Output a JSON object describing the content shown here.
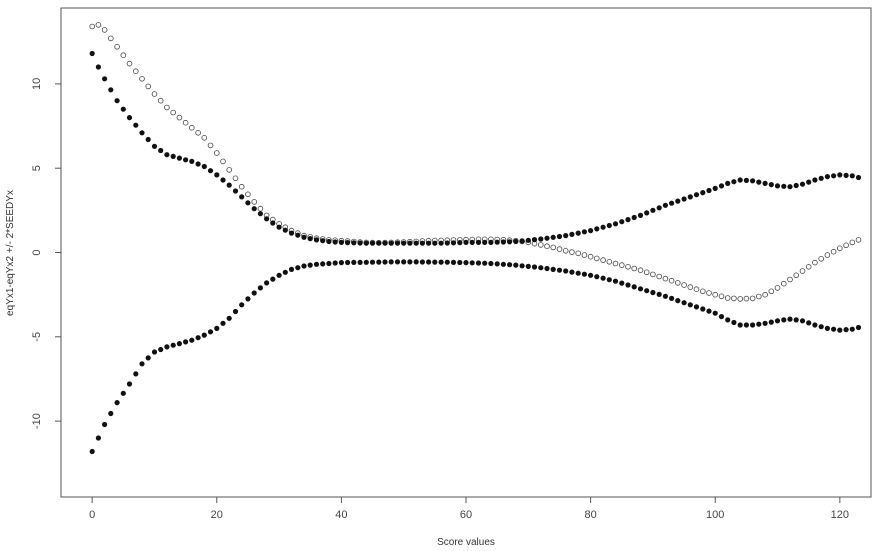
{
  "chart_data": {
    "type": "scatter",
    "title": "",
    "xlabel": "Score values",
    "ylabel": "eqYx1-eqYx2 +/- 2*SEEDYx",
    "xlim": [
      -5,
      125
    ],
    "ylim": [
      -14.5,
      14.5
    ],
    "xticks": [
      0,
      20,
      40,
      60,
      80,
      100,
      120
    ],
    "yticks": [
      -10,
      -5,
      0,
      5,
      10
    ],
    "grid": false,
    "legend": "none",
    "colors": {
      "filled": "#111111",
      "open_stroke": "#444444",
      "frame": "#555555"
    },
    "series": [
      {
        "marker": "open-circle",
        "knots": [
          [
            0,
            13.4
          ],
          [
            1,
            13.5
          ],
          [
            2,
            13.2
          ],
          [
            4,
            12.2
          ],
          [
            6,
            11.2
          ],
          [
            8,
            10.3
          ],
          [
            10,
            9.4
          ],
          [
            12,
            8.6
          ],
          [
            14,
            8.0
          ],
          [
            16,
            7.4
          ],
          [
            18,
            6.8
          ],
          [
            20,
            5.9
          ],
          [
            22,
            4.9
          ],
          [
            24,
            3.9
          ],
          [
            26,
            3.0
          ],
          [
            28,
            2.2
          ],
          [
            30,
            1.7
          ],
          [
            32,
            1.3
          ],
          [
            34,
            1.0
          ],
          [
            36,
            0.85
          ],
          [
            38,
            0.75
          ],
          [
            40,
            0.7
          ],
          [
            42,
            0.65
          ],
          [
            44,
            0.6
          ],
          [
            46,
            0.58
          ],
          [
            48,
            0.6
          ],
          [
            50,
            0.62
          ],
          [
            52,
            0.66
          ],
          [
            54,
            0.7
          ],
          [
            56,
            0.72
          ],
          [
            58,
            0.74
          ],
          [
            60,
            0.76
          ],
          [
            62,
            0.78
          ],
          [
            64,
            0.78
          ],
          [
            66,
            0.76
          ],
          [
            68,
            0.7
          ],
          [
            70,
            0.6
          ],
          [
            72,
            0.45
          ],
          [
            74,
            0.3
          ],
          [
            76,
            0.1
          ],
          [
            78,
            -0.05
          ],
          [
            80,
            -0.25
          ],
          [
            82,
            -0.45
          ],
          [
            84,
            -0.65
          ],
          [
            86,
            -0.85
          ],
          [
            88,
            -1.05
          ],
          [
            90,
            -1.3
          ],
          [
            92,
            -1.55
          ],
          [
            94,
            -1.8
          ],
          [
            96,
            -2.05
          ],
          [
            98,
            -2.3
          ],
          [
            100,
            -2.5
          ],
          [
            102,
            -2.7
          ],
          [
            104,
            -2.75
          ],
          [
            106,
            -2.72
          ],
          [
            108,
            -2.5
          ],
          [
            110,
            -2.1
          ],
          [
            112,
            -1.6
          ],
          [
            114,
            -1.1
          ],
          [
            116,
            -0.6
          ],
          [
            118,
            -0.15
          ],
          [
            120,
            0.25
          ],
          [
            122,
            0.6
          ],
          [
            123,
            0.75
          ]
        ]
      },
      {
        "marker": "filled-circle",
        "knots": [
          [
            0,
            11.8
          ],
          [
            1,
            11.0
          ],
          [
            2,
            10.3
          ],
          [
            4,
            9.0
          ],
          [
            6,
            8.0
          ],
          [
            8,
            7.1
          ],
          [
            10,
            6.3
          ],
          [
            12,
            5.8
          ],
          [
            14,
            5.6
          ],
          [
            16,
            5.4
          ],
          [
            18,
            5.1
          ],
          [
            20,
            4.6
          ],
          [
            22,
            4.0
          ],
          [
            24,
            3.3
          ],
          [
            26,
            2.6
          ],
          [
            28,
            2.0
          ],
          [
            30,
            1.5
          ],
          [
            32,
            1.15
          ],
          [
            34,
            0.9
          ],
          [
            36,
            0.75
          ],
          [
            38,
            0.65
          ],
          [
            40,
            0.6
          ],
          [
            44,
            0.55
          ],
          [
            48,
            0.55
          ],
          [
            52,
            0.55
          ],
          [
            56,
            0.55
          ],
          [
            60,
            0.6
          ],
          [
            64,
            0.6
          ],
          [
            68,
            0.65
          ],
          [
            72,
            0.8
          ],
          [
            76,
            1.0
          ],
          [
            80,
            1.3
          ],
          [
            84,
            1.7
          ],
          [
            88,
            2.2
          ],
          [
            92,
            2.8
          ],
          [
            96,
            3.3
          ],
          [
            100,
            3.8
          ],
          [
            102,
            4.1
          ],
          [
            104,
            4.3
          ],
          [
            106,
            4.25
          ],
          [
            108,
            4.1
          ],
          [
            110,
            3.95
          ],
          [
            112,
            3.9
          ],
          [
            114,
            4.05
          ],
          [
            116,
            4.3
          ],
          [
            118,
            4.5
          ],
          [
            120,
            4.6
          ],
          [
            122,
            4.55
          ],
          [
            123,
            4.45
          ]
        ]
      },
      {
        "marker": "filled-circle",
        "knots": [
          [
            0,
            -11.8
          ],
          [
            1,
            -11.0
          ],
          [
            2,
            -10.2
          ],
          [
            4,
            -8.9
          ],
          [
            6,
            -7.8
          ],
          [
            8,
            -6.6
          ],
          [
            10,
            -5.9
          ],
          [
            12,
            -5.6
          ],
          [
            14,
            -5.4
          ],
          [
            16,
            -5.2
          ],
          [
            18,
            -4.9
          ],
          [
            20,
            -4.5
          ],
          [
            22,
            -3.9
          ],
          [
            24,
            -3.1
          ],
          [
            26,
            -2.4
          ],
          [
            28,
            -1.8
          ],
          [
            30,
            -1.35
          ],
          [
            32,
            -1.0
          ],
          [
            34,
            -0.8
          ],
          [
            36,
            -0.7
          ],
          [
            38,
            -0.65
          ],
          [
            40,
            -0.6
          ],
          [
            44,
            -0.58
          ],
          [
            48,
            -0.56
          ],
          [
            52,
            -0.56
          ],
          [
            56,
            -0.57
          ],
          [
            60,
            -0.6
          ],
          [
            64,
            -0.65
          ],
          [
            68,
            -0.75
          ],
          [
            72,
            -0.9
          ],
          [
            76,
            -1.1
          ],
          [
            80,
            -1.35
          ],
          [
            84,
            -1.7
          ],
          [
            88,
            -2.15
          ],
          [
            92,
            -2.6
          ],
          [
            96,
            -3.1
          ],
          [
            100,
            -3.6
          ],
          [
            102,
            -4.0
          ],
          [
            104,
            -4.3
          ],
          [
            106,
            -4.3
          ],
          [
            108,
            -4.2
          ],
          [
            110,
            -4.05
          ],
          [
            112,
            -3.95
          ],
          [
            114,
            -4.05
          ],
          [
            116,
            -4.3
          ],
          [
            118,
            -4.5
          ],
          [
            120,
            -4.6
          ],
          [
            122,
            -4.55
          ],
          [
            123,
            -4.45
          ]
        ]
      }
    ]
  }
}
